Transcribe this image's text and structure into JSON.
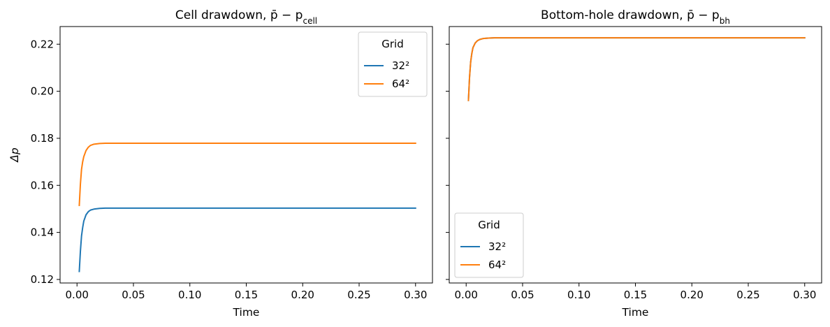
{
  "chart_data": [
    {
      "type": "line",
      "title": "Cell drawdown, p̄ − p",
      "title_sub": "cell",
      "xlabel": "Time",
      "ylabel": "Δp",
      "xlim": [
        -0.015,
        0.315
      ],
      "ylim": [
        0.1185,
        0.2275
      ],
      "xticks": [
        0.0,
        0.05,
        0.1,
        0.15,
        0.2,
        0.25,
        0.3
      ],
      "xtick_labels": [
        "0.00",
        "0.05",
        "0.10",
        "0.15",
        "0.20",
        "0.25",
        "0.30"
      ],
      "yticks": [
        0.12,
        0.14,
        0.16,
        0.18,
        0.2,
        0.22
      ],
      "ytick_labels": [
        "0.12",
        "0.14",
        "0.16",
        "0.18",
        "0.20",
        "0.22"
      ],
      "show_yticklabels": true,
      "legend": {
        "title": "Grid",
        "placement": "top-right"
      },
      "series": [
        {
          "name": "32²",
          "color": "#1f77b4",
          "x": [
            0.002,
            0.003,
            0.004,
            0.005,
            0.006,
            0.008,
            0.01,
            0.012,
            0.015,
            0.02,
            0.025,
            0.03,
            0.05,
            0.1,
            0.15,
            0.2,
            0.25,
            0.3
          ],
          "y": [
            0.1234,
            0.132,
            0.1385,
            0.142,
            0.1448,
            0.1475,
            0.1488,
            0.1495,
            0.1499,
            0.1502,
            0.1503,
            0.1503,
            0.1503,
            0.1503,
            0.1503,
            0.1503,
            0.1503,
            0.1503
          ]
        },
        {
          "name": "64²",
          "color": "#ff7f0e",
          "x": [
            0.002,
            0.003,
            0.004,
            0.005,
            0.006,
            0.008,
            0.01,
            0.012,
            0.015,
            0.02,
            0.025,
            0.03,
            0.05,
            0.1,
            0.15,
            0.2,
            0.25,
            0.3
          ],
          "y": [
            0.1515,
            0.1605,
            0.1668,
            0.17,
            0.1722,
            0.1748,
            0.1762,
            0.177,
            0.1775,
            0.1778,
            0.1779,
            0.1779,
            0.1779,
            0.1779,
            0.1779,
            0.1779,
            0.1779,
            0.1779
          ]
        }
      ]
    },
    {
      "type": "line",
      "title": "Bottom-hole drawdown, p̄ − p",
      "title_sub": "bh",
      "xlabel": "Time",
      "ylabel": "",
      "xlim": [
        -0.015,
        0.315
      ],
      "ylim": [
        0.1185,
        0.2275
      ],
      "xticks": [
        0.0,
        0.05,
        0.1,
        0.15,
        0.2,
        0.25,
        0.3
      ],
      "xtick_labels": [
        "0.00",
        "0.05",
        "0.10",
        "0.15",
        "0.20",
        "0.25",
        "0.30"
      ],
      "yticks": [
        0.12,
        0.14,
        0.16,
        0.18,
        0.2,
        0.22
      ],
      "ytick_labels": [],
      "show_yticklabels": false,
      "legend": {
        "title": "Grid",
        "placement": "bottom-left"
      },
      "series": [
        {
          "name": "32²",
          "color": "#1f77b4",
          "x": [
            0.002,
            0.003,
            0.004,
            0.005,
            0.006,
            0.008,
            0.01,
            0.012,
            0.015,
            0.02,
            0.025,
            0.03,
            0.05,
            0.1,
            0.15,
            0.2,
            0.25,
            0.3
          ],
          "y": [
            0.1961,
            0.206,
            0.2125,
            0.216,
            0.2185,
            0.2205,
            0.2215,
            0.222,
            0.2224,
            0.2226,
            0.2227,
            0.2227,
            0.2227,
            0.2227,
            0.2227,
            0.2227,
            0.2227,
            0.2227
          ]
        },
        {
          "name": "64²",
          "color": "#ff7f0e",
          "x": [
            0.002,
            0.003,
            0.004,
            0.005,
            0.006,
            0.008,
            0.01,
            0.012,
            0.015,
            0.02,
            0.025,
            0.03,
            0.05,
            0.1,
            0.15,
            0.2,
            0.25,
            0.3
          ],
          "y": [
            0.1961,
            0.206,
            0.2125,
            0.216,
            0.2185,
            0.2205,
            0.2215,
            0.222,
            0.2224,
            0.2226,
            0.2227,
            0.2227,
            0.2227,
            0.2227,
            0.2227,
            0.2227,
            0.2227,
            0.2227
          ]
        }
      ]
    }
  ]
}
